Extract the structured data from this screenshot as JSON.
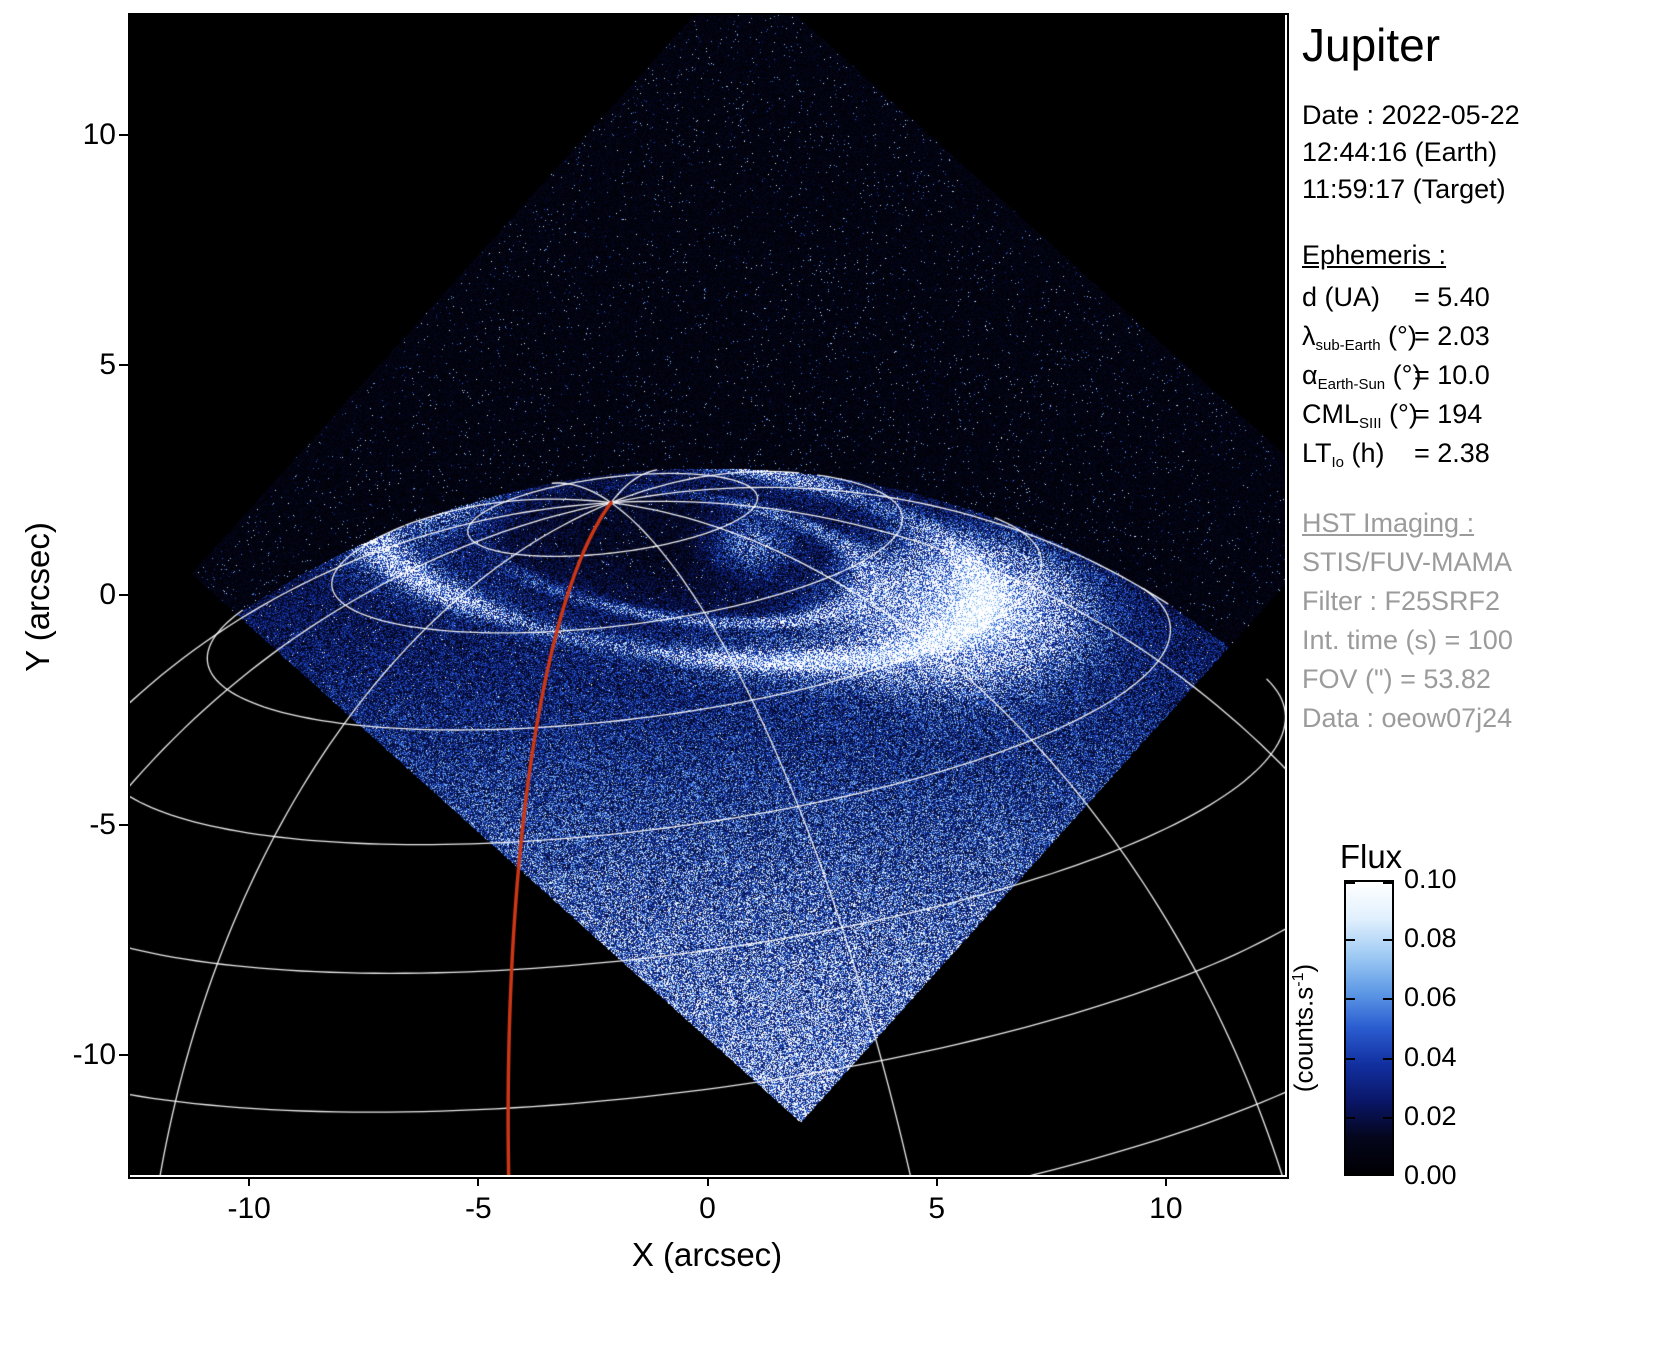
{
  "title": "Jupiter",
  "info_panel": {
    "date_line": "Date : 2022-05-22",
    "earth_time": "12:44:16 (Earth)",
    "target_time": "11:59:17 (Target)",
    "ephemeris_heading": "Ephemeris :",
    "ephemeris_rows": [
      {
        "sym": "d",
        "sub": "",
        "unit": " (UA)",
        "value": "= 5.40"
      },
      {
        "sym": "λ",
        "sub": "sub-Earth",
        "unit": " (°)",
        "value": "= 2.03"
      },
      {
        "sym": "α",
        "sub": "Earth-Sun",
        "unit": " (°)",
        "value": "= 10.0"
      },
      {
        "sym": "CML",
        "sub": "SIII",
        "unit": " (°)",
        "value": "= 194"
      },
      {
        "sym": "LT",
        "sub": "Io",
        "unit": " (h)",
        "value": "= 2.38"
      }
    ],
    "hst_heading": "HST Imaging :",
    "hst_lines": [
      "STIS/FUV-MAMA",
      "Filter : F25SRF2",
      "Int. time (s) = 100",
      "FOV (\") = 53.82",
      "Data : oeow07j24"
    ],
    "text_color": "#000000",
    "hst_color": "#9b9b9b"
  },
  "axes": {
    "x_label": "X (arcsec)",
    "y_label": "Y (arcsec)",
    "x_tick_labels": [
      "-10",
      "-5",
      "0",
      "5",
      "10"
    ],
    "x_tick_values": [
      -10,
      -5,
      0,
      5,
      10
    ],
    "y_tick_labels": [
      "10",
      "5",
      "0",
      "-5",
      "-10"
    ],
    "y_tick_values": [
      10,
      5,
      0,
      -5,
      -10
    ],
    "x_range": [
      -12.6,
      12.6
    ],
    "y_range": [
      -12.6,
      12.6
    ]
  },
  "colorbar": {
    "title": "Flux",
    "tick_labels": [
      "0.10",
      "0.08",
      "0.06",
      "0.04",
      "0.02",
      "0.00"
    ],
    "tick_values": [
      0.1,
      0.08,
      0.06,
      0.04,
      0.02,
      0.0
    ],
    "min": 0.0,
    "max": 0.1,
    "unit_prefix": "(counts.s",
    "unit_sup": "-1",
    "unit_suffix": ")",
    "gradient": [
      "#000003",
      "#04061c",
      "#0a1668",
      "#1230a0",
      "#2a5cd0",
      "#5f9ae6",
      "#a0cbf4",
      "#e1f0fd",
      "#ffffff"
    ]
  },
  "figure": {
    "background": "#000000",
    "grid_color": "#ffffff",
    "accent_red": "#cc3716"
  },
  "chart_data": {
    "type": "heatmap",
    "title": "Jupiter",
    "xlabel": "X (arcsec)",
    "ylabel": "Y (arcsec)",
    "xlim": [
      -12.6,
      12.6
    ],
    "ylim": [
      -12.6,
      12.6
    ],
    "x_ticks": [
      -10,
      -5,
      0,
      5,
      10
    ],
    "y_ticks": [
      10,
      5,
      0,
      -5,
      -10
    ],
    "colorbar": {
      "label": "Flux",
      "units": "counts.s-1",
      "range": [
        0.0,
        0.1
      ],
      "ticks": [
        0.0,
        0.02,
        0.04,
        0.06,
        0.08,
        0.1
      ]
    },
    "content": "HST far-ultraviolet image of Jupiter's northern aurora: bright auroral oval near the pole, rotated-square (diamond) detector field of view filled with blue counts noise, white planetary latitude/longitude graticule, and a red meridian track ending at the pole",
    "observation": {
      "date": "2022-05-22",
      "time_earth": "12:44:16",
      "time_target": "11:59:17",
      "instrument": "STIS/FUV-MAMA",
      "filter": "F25SRF2",
      "integration_time_s": 100,
      "fov_arcsec": 53.82,
      "dataset": "oeow07j24"
    },
    "ephemeris": {
      "d_UA": 5.4,
      "lambda_sub_earth_deg": 2.03,
      "alpha_earth_sun_deg": 10.0,
      "CML_SIII_deg": 194,
      "LT_Io_h": 2.38
    }
  }
}
